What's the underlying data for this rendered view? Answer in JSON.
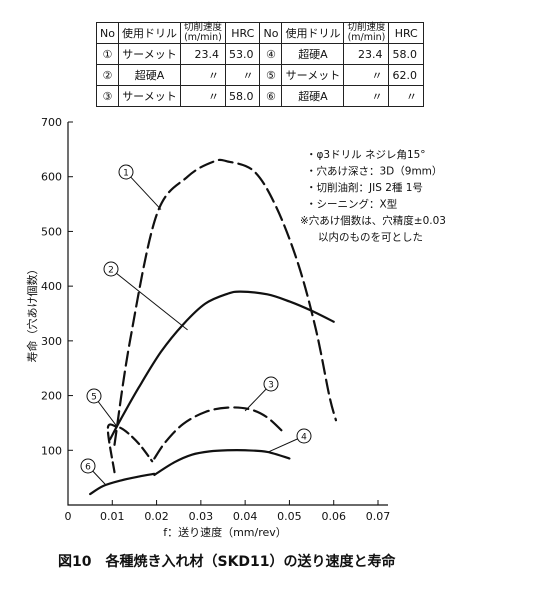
{
  "table": {
    "headers": [
      "No",
      "使用ドリル",
      "切削速度\n(m/min)",
      "HRC",
      "No",
      "使用ドリル",
      "切削速度\n(m/min)",
      "HRC"
    ],
    "rows": [
      [
        "①",
        "サーメット",
        "23.4",
        "53.0",
        "④",
        "超硬A",
        "23.4",
        "58.0"
      ],
      [
        "②",
        "超硬A",
        "〃",
        "〃",
        "⑤",
        "サーメット",
        "〃",
        "62.0"
      ],
      [
        "③",
        "サーメット",
        "〃",
        "58.0",
        "⑥",
        "超硬A",
        "〃",
        "〃"
      ]
    ]
  },
  "notes": [
    "・φ3ドリル ネジレ角15°",
    "・穴あけ深さ：3D（9mm）",
    "・切削油剤：JIS 2種 1号",
    "・シーニング：X型",
    "※穴あけ個数は、穴精度±0.03",
    "以内のものを可とした"
  ],
  "caption": "図10　各種焼き入れ材（SKD11）の送り速度と寿命",
  "chart_data": {
    "type": "line",
    "xlabel": "f：送り速度（mm/rev）",
    "ylabel": "寿命（穴あけ個数）",
    "xlim": [
      0,
      0.07
    ],
    "ylim": [
      0,
      700
    ],
    "xticks": [
      "0",
      "0.01",
      "0.02",
      "0.03",
      "0.04",
      "0.05",
      "0.06",
      "0.07"
    ],
    "yticks": [
      "100",
      "200",
      "300",
      "400",
      "500",
      "600",
      "700"
    ],
    "grid": false,
    "series": [
      {
        "name": "①",
        "x": [
          0.0105,
          0.014,
          0.02,
          0.027,
          0.033,
          0.036,
          0.042,
          0.047,
          0.052,
          0.056,
          0.059,
          0.0605
        ],
        "y": [
          110,
          300,
          530,
          600,
          628,
          628,
          610,
          545,
          440,
          320,
          200,
          155
        ]
      },
      {
        "name": "②",
        "x": [
          0.0095,
          0.012,
          0.016,
          0.021,
          0.026,
          0.031,
          0.036,
          0.039,
          0.045,
          0.05,
          0.055,
          0.06
        ],
        "y": [
          120,
          158,
          215,
          280,
          330,
          368,
          386,
          390,
          385,
          372,
          355,
          335
        ]
      },
      {
        "name": "③",
        "x": [
          0.0195,
          0.022,
          0.026,
          0.031,
          0.036,
          0.041,
          0.045,
          0.049
        ],
        "y": [
          85,
          115,
          148,
          170,
          178,
          175,
          160,
          130
        ]
      },
      {
        "name": "④",
        "x": [
          0.0195,
          0.024,
          0.028,
          0.032,
          0.036,
          0.04,
          0.045,
          0.05
        ],
        "y": [
          55,
          78,
          92,
          98,
          100,
          100,
          97,
          85
        ]
      },
      {
        "name": "⑤",
        "x": [
          0.0105,
          0.009,
          0.011,
          0.013,
          0.016,
          0.019
        ],
        "y": [
          60,
          140,
          143,
          135,
          112,
          80
        ]
      },
      {
        "name": "⑥",
        "x": [
          0.005,
          0.008,
          0.012,
          0.016,
          0.0195
        ],
        "y": [
          20,
          35,
          45,
          52,
          57
        ]
      }
    ]
  }
}
